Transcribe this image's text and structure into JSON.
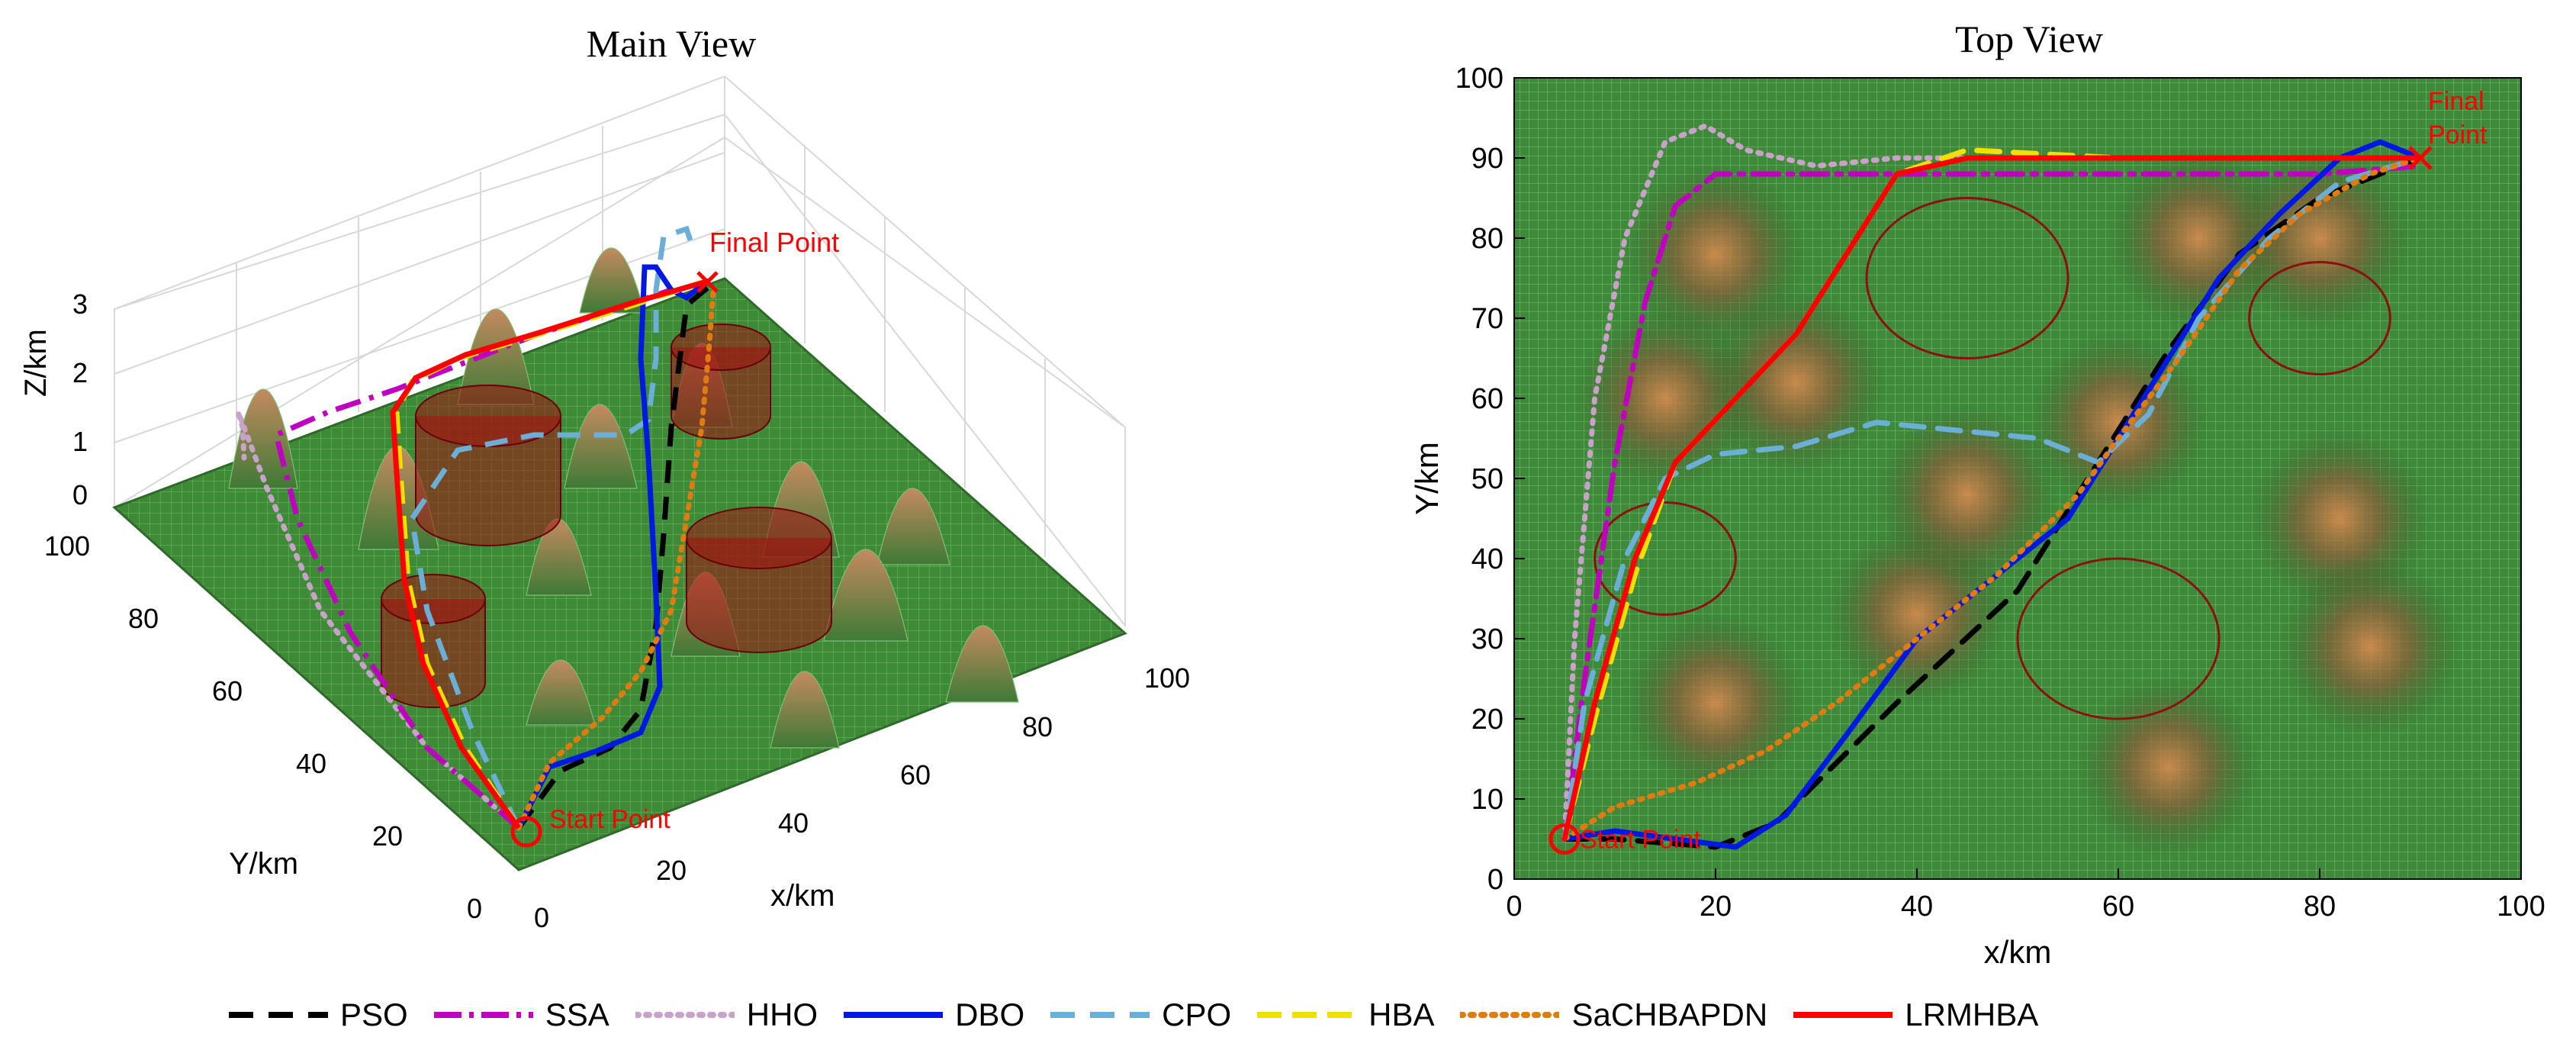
{
  "chart_data": [
    {
      "type": "line",
      "panel": "main_view",
      "title": "Main View",
      "xlabel": "x/km",
      "ylabel": "Y/km",
      "zlabel": "Z/km",
      "xlim": [
        0,
        100
      ],
      "ylim": [
        0,
        100
      ],
      "zlim": [
        0,
        3
      ],
      "x_ticks": [
        "0",
        "20",
        "40",
        "60",
        "80",
        "100"
      ],
      "y_ticks": [
        "0",
        "20",
        "40",
        "60",
        "80",
        "100"
      ],
      "z_ticks": [
        "0",
        "1",
        "2",
        "3"
      ],
      "annotations": [
        "Start Point",
        "Final Point"
      ]
    },
    {
      "type": "line",
      "panel": "top_view",
      "title": "Top View",
      "xlabel": "x/km",
      "ylabel": "Y/km",
      "xlim": [
        0,
        100
      ],
      "ylim": [
        0,
        100
      ],
      "x_ticks": [
        "0",
        "20",
        "40",
        "60",
        "80",
        "100"
      ],
      "y_ticks": [
        "0",
        "10",
        "20",
        "30",
        "40",
        "50",
        "60",
        "70",
        "80",
        "90",
        "100"
      ],
      "annotations": [
        "Start Point",
        "Final Point"
      ],
      "start": [
        5,
        5
      ],
      "final": [
        90,
        90
      ],
      "threat_circles": [
        {
          "cx": 45,
          "cy": 75,
          "r": 10
        },
        {
          "cx": 80,
          "cy": 70,
          "r": 7
        },
        {
          "cx": 15,
          "cy": 40,
          "r": 7
        },
        {
          "cx": 60,
          "cy": 30,
          "r": 10
        }
      ],
      "series": [
        {
          "name": "PSO",
          "color": "#000000",
          "style": "dash",
          "points": [
            [
              5,
              5
            ],
            [
              10,
              5
            ],
            [
              20,
              4
            ],
            [
              26,
              7
            ],
            [
              30,
              12
            ],
            [
              38,
              22
            ],
            [
              50,
              36
            ],
            [
              58,
              52
            ],
            [
              65,
              66
            ],
            [
              72,
              78
            ],
            [
              80,
              85
            ],
            [
              90,
              90
            ]
          ]
        },
        {
          "name": "SSA",
          "color": "#bf00bf",
          "style": "dashdot",
          "points": [
            [
              5,
              5
            ],
            [
              7,
              25
            ],
            [
              10,
              52
            ],
            [
              13,
              72
            ],
            [
              16,
              84
            ],
            [
              20,
              88
            ],
            [
              40,
              88
            ],
            [
              60,
              88
            ],
            [
              80,
              88
            ],
            [
              90,
              89
            ]
          ]
        },
        {
          "name": "HHO",
          "color": "#c8a2c8",
          "style": "dot",
          "points": [
            [
              5,
              5
            ],
            [
              6,
              30
            ],
            [
              8,
              60
            ],
            [
              11,
              80
            ],
            [
              15,
              92
            ],
            [
              19,
              94
            ],
            [
              23,
              91
            ],
            [
              30,
              89
            ],
            [
              38,
              90
            ],
            [
              50,
              90
            ],
            [
              70,
              90
            ],
            [
              90,
              90
            ]
          ]
        },
        {
          "name": "DBO",
          "color": "#0019e0",
          "style": "solid",
          "points": [
            [
              5,
              5
            ],
            [
              10,
              6
            ],
            [
              16,
              5
            ],
            [
              22,
              4
            ],
            [
              27,
              8
            ],
            [
              33,
              18
            ],
            [
              40,
              30
            ],
            [
              48,
              38
            ],
            [
              55,
              45
            ],
            [
              60,
              55
            ],
            [
              65,
              65
            ],
            [
              70,
              75
            ],
            [
              76,
              83
            ],
            [
              82,
              90
            ],
            [
              86,
              92
            ],
            [
              90,
              90
            ]
          ]
        },
        {
          "name": "CPO",
          "color": "#6baed6",
          "style": "dash",
          "points": [
            [
              5,
              5
            ],
            [
              7,
              22
            ],
            [
              11,
              40
            ],
            [
              15,
              50
            ],
            [
              20,
              53
            ],
            [
              28,
              54
            ],
            [
              36,
              57
            ],
            [
              44,
              56
            ],
            [
              52,
              55
            ],
            [
              58,
              52
            ],
            [
              63,
              58
            ],
            [
              68,
              70
            ],
            [
              75,
              80
            ],
            [
              82,
              87
            ],
            [
              90,
              90
            ]
          ]
        },
        {
          "name": "HBA",
          "color": "#f0e000",
          "style": "dash",
          "points": [
            [
              5,
              5
            ],
            [
              8,
              20
            ],
            [
              12,
              38
            ],
            [
              16,
              52
            ],
            [
              22,
              60
            ],
            [
              28,
              68
            ],
            [
              33,
              78
            ],
            [
              38,
              88
            ],
            [
              45,
              91
            ],
            [
              60,
              90
            ],
            [
              75,
              90
            ],
            [
              90,
              90
            ]
          ]
        },
        {
          "name": "SaCHBAPDN",
          "color": "#e07b10",
          "style": "dot",
          "points": [
            [
              5,
              5
            ],
            [
              10,
              9
            ],
            [
              18,
              12
            ],
            [
              25,
              16
            ],
            [
              32,
              22
            ],
            [
              40,
              30
            ],
            [
              48,
              38
            ],
            [
              56,
              48
            ],
            [
              60,
              55
            ],
            [
              66,
              65
            ],
            [
              72,
              76
            ],
            [
              78,
              83
            ],
            [
              85,
              88
            ],
            [
              90,
              90
            ]
          ]
        },
        {
          "name": "LRMHBA",
          "color": "#ff0000",
          "style": "solid",
          "points": [
            [
              5,
              5
            ],
            [
              8,
              22
            ],
            [
              12,
              40
            ],
            [
              16,
              52
            ],
            [
              22,
              60
            ],
            [
              28,
              68
            ],
            [
              33,
              78
            ],
            [
              38,
              88
            ],
            [
              45,
              90
            ],
            [
              60,
              90
            ],
            [
              75,
              90
            ],
            [
              90,
              90
            ]
          ]
        }
      ]
    }
  ]
}
